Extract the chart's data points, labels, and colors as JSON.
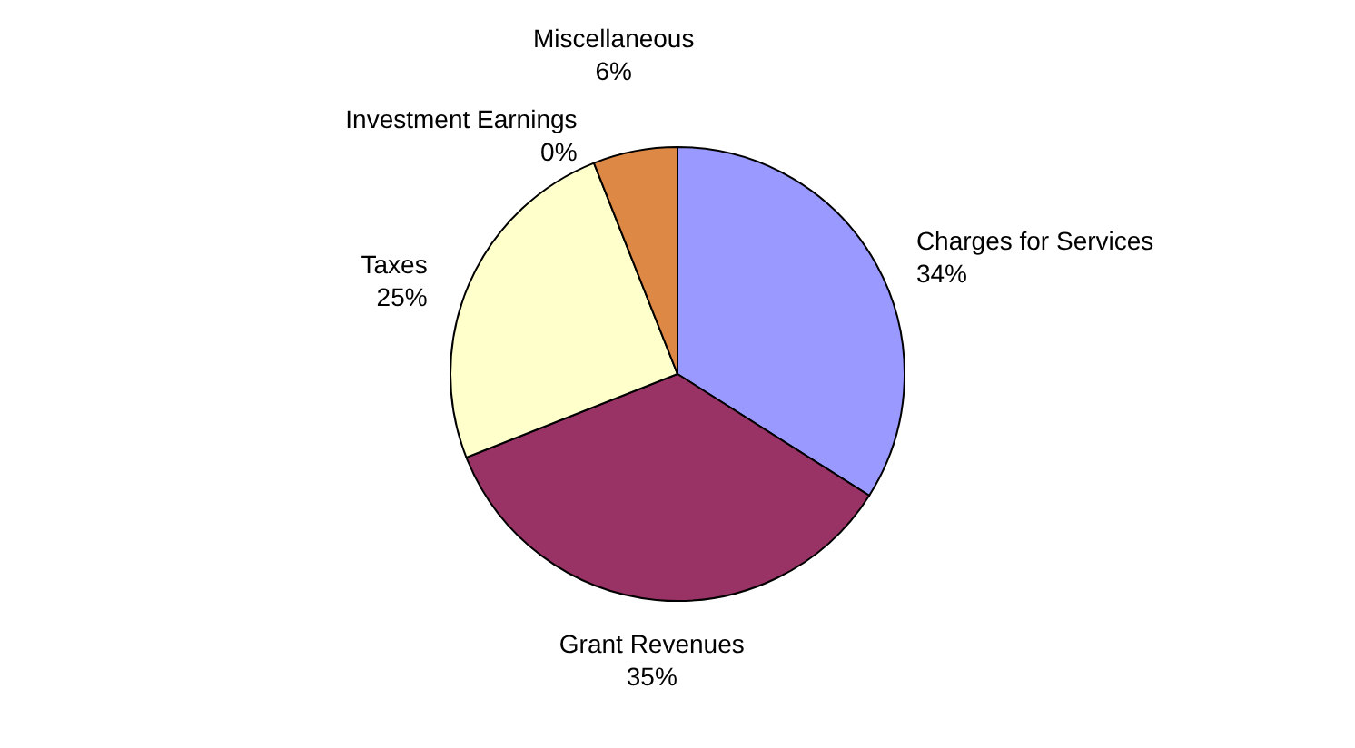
{
  "chart_data": {
    "type": "pie",
    "categories": [
      "Charges for Services",
      "Grant Revenues",
      "Taxes",
      "Investment Earnings",
      "Miscellaneous"
    ],
    "values": [
      34,
      35,
      25,
      0,
      6
    ],
    "colors": [
      "#9999ff",
      "#993366",
      "#ffffcc",
      "#ccffff",
      "#dd8844"
    ],
    "value_labels": [
      "34%",
      "35%",
      "25%",
      "0%",
      "6%"
    ]
  }
}
